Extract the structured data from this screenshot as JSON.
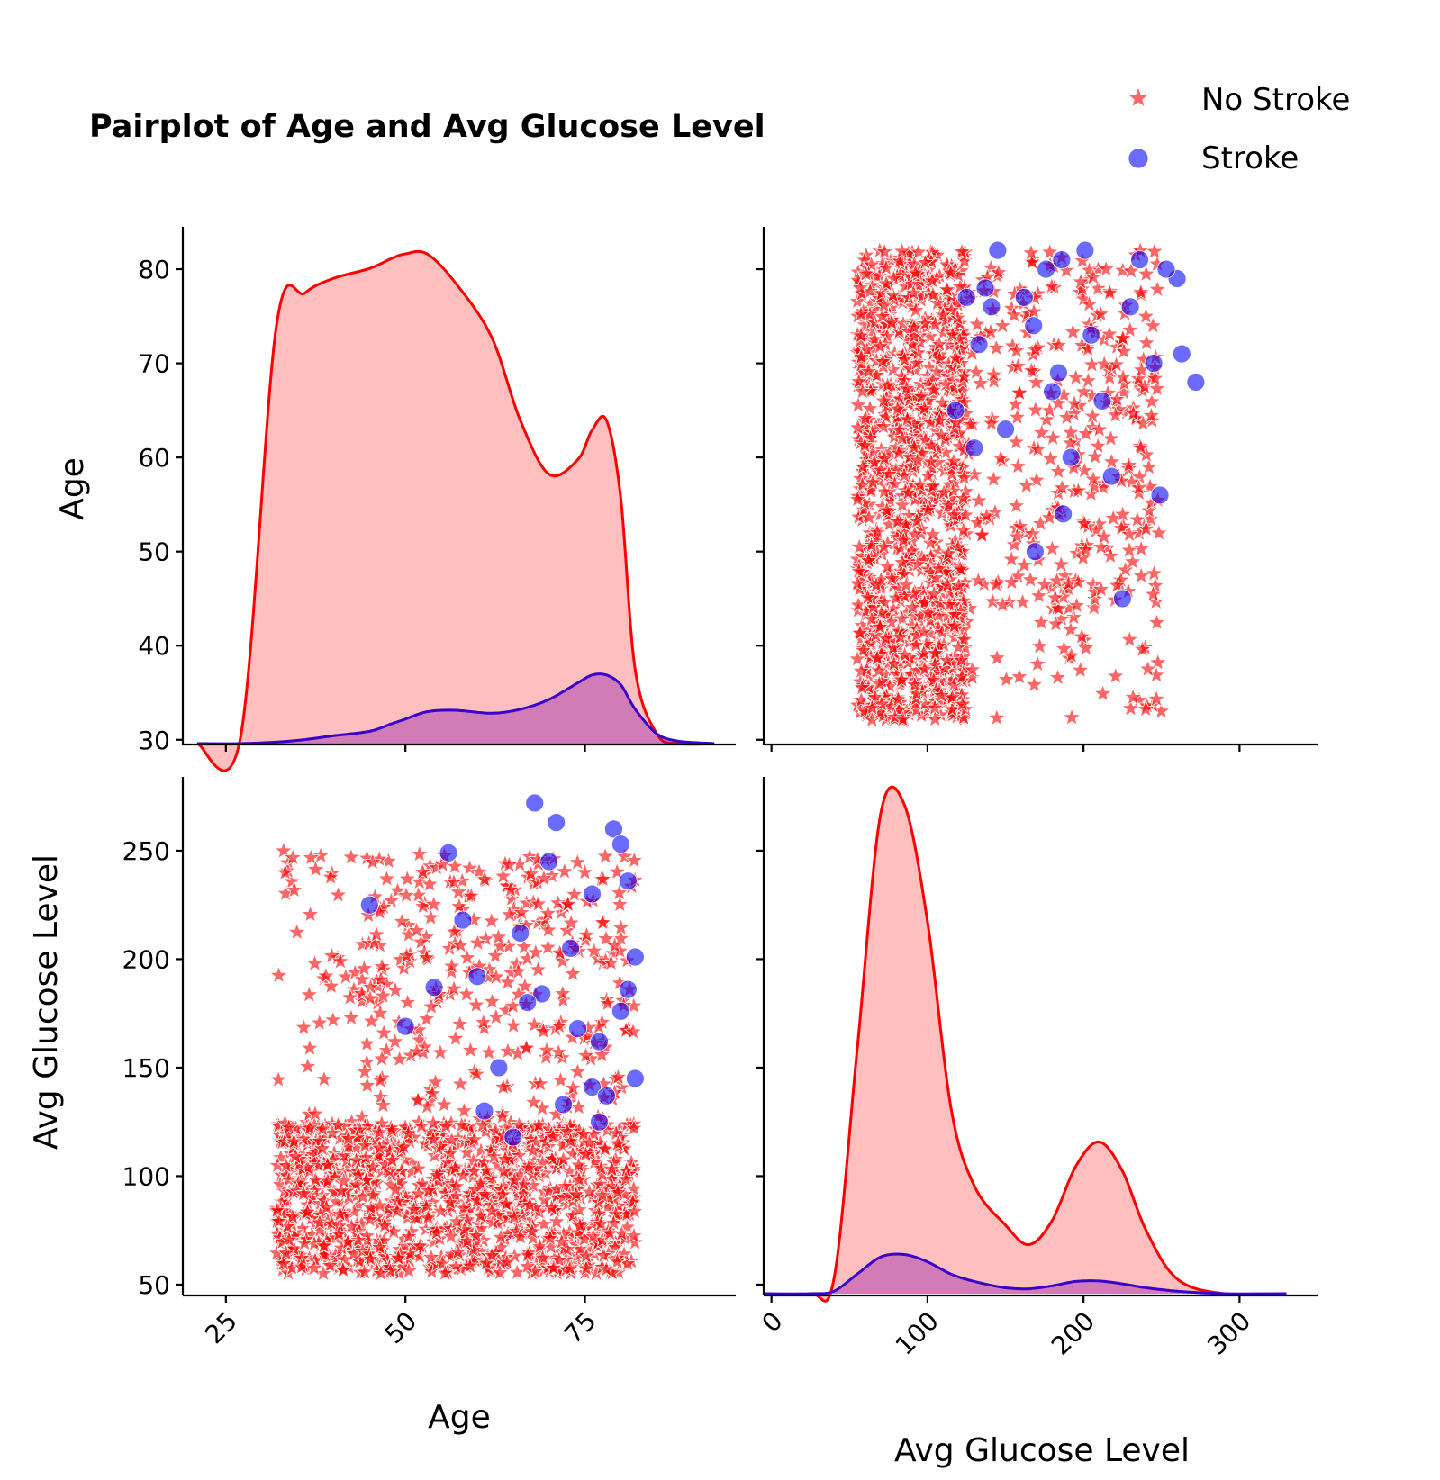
{
  "chart_data": {
    "type": "scatter",
    "title": "Pairplot of Age and Avg Glucose Level",
    "variables": [
      "Age",
      "Avg Glucose Level"
    ],
    "legend": {
      "placement": "top-right",
      "entries": [
        {
          "name": "No Stroke",
          "marker": "star",
          "color": "#ff0000"
        },
        {
          "name": "Stroke",
          "marker": "circle",
          "color": "#0000ff"
        }
      ]
    },
    "axes": {
      "age": {
        "label": "Age",
        "range": [
          19,
          96
        ],
        "ticks_x": [
          "25",
          "50",
          "75"
        ],
        "range_y": [
          29.5,
          84.5
        ],
        "ticks_y": [
          "30",
          "40",
          "50",
          "60",
          "70",
          "80"
        ]
      },
      "glucose": {
        "label": "Avg Glucose Level",
        "range": [
          -5,
          350
        ],
        "ticks_x": [
          "0",
          "100",
          "200",
          "300"
        ],
        "range_y": [
          45,
          284
        ],
        "ticks_y": [
          "50",
          "100",
          "150",
          "200",
          "250"
        ]
      }
    },
    "kde_age": {
      "x": [
        21,
        27,
        32,
        36,
        40,
        45,
        48,
        50,
        53,
        57,
        62,
        66,
        70,
        74,
        76,
        78,
        80,
        82,
        85,
        88,
        93
      ],
      "no_stroke": [
        0,
        0.01,
        0.85,
        0.92,
        0.95,
        0.97,
        0.99,
        1.0,
        1.0,
        0.94,
        0.83,
        0.66,
        0.55,
        0.58,
        0.64,
        0.66,
        0.5,
        0.15,
        0.02,
        0,
        0
      ],
      "stroke": [
        0,
        0,
        0.003,
        0.008,
        0.016,
        0.025,
        0.04,
        0.05,
        0.065,
        0.068,
        0.062,
        0.07,
        0.09,
        0.124,
        0.14,
        0.14,
        0.12,
        0.07,
        0.02,
        0.005,
        0
      ]
    },
    "kde_glucose": {
      "x": [
        -5,
        25,
        40,
        55,
        70,
        85,
        100,
        115,
        130,
        150,
        165,
        180,
        195,
        210,
        225,
        240,
        260,
        290,
        330
      ],
      "no_stroke": [
        0,
        0,
        0.03,
        0.5,
        0.98,
        1.0,
        0.76,
        0.38,
        0.22,
        0.14,
        0.1,
        0.15,
        0.26,
        0.31,
        0.25,
        0.13,
        0.03,
        0,
        0
      ],
      "stroke": [
        0,
        0,
        0.005,
        0.04,
        0.075,
        0.08,
        0.065,
        0.04,
        0.025,
        0.012,
        0.01,
        0.016,
        0.025,
        0.026,
        0.02,
        0.012,
        0.005,
        0,
        0
      ]
    },
    "stroke_points": [
      {
        "age": 68,
        "glucose": 272
      },
      {
        "age": 71,
        "glucose": 263
      },
      {
        "age": 79,
        "glucose": 260
      },
      {
        "age": 80,
        "glucose": 253
      },
      {
        "age": 56,
        "glucose": 249
      },
      {
        "age": 45,
        "glucose": 225
      },
      {
        "age": 82,
        "glucose": 201
      },
      {
        "age": 81,
        "glucose": 186
      },
      {
        "age": 69,
        "glucose": 184
      },
      {
        "age": 67,
        "glucose": 180
      },
      {
        "age": 74,
        "glucose": 168
      },
      {
        "age": 77,
        "glucose": 162
      },
      {
        "age": 50,
        "glucose": 169
      },
      {
        "age": 82,
        "glucose": 145
      },
      {
        "age": 76,
        "glucose": 141
      },
      {
        "age": 78,
        "glucose": 137
      },
      {
        "age": 72,
        "glucose": 133
      },
      {
        "age": 61,
        "glucose": 130
      },
      {
        "age": 65,
        "glucose": 118
      },
      {
        "age": 77,
        "glucose": 125
      },
      {
        "age": 54,
        "glucose": 187
      },
      {
        "age": 60,
        "glucose": 192
      },
      {
        "age": 70,
        "glucose": 245
      },
      {
        "age": 76,
        "glucose": 230
      },
      {
        "age": 63,
        "glucose": 150
      },
      {
        "age": 80,
        "glucose": 176
      },
      {
        "age": 58,
        "glucose": 218
      },
      {
        "age": 66,
        "glucose": 212
      },
      {
        "age": 73,
        "glucose": 205
      },
      {
        "age": 81,
        "glucose": 236
      }
    ]
  }
}
